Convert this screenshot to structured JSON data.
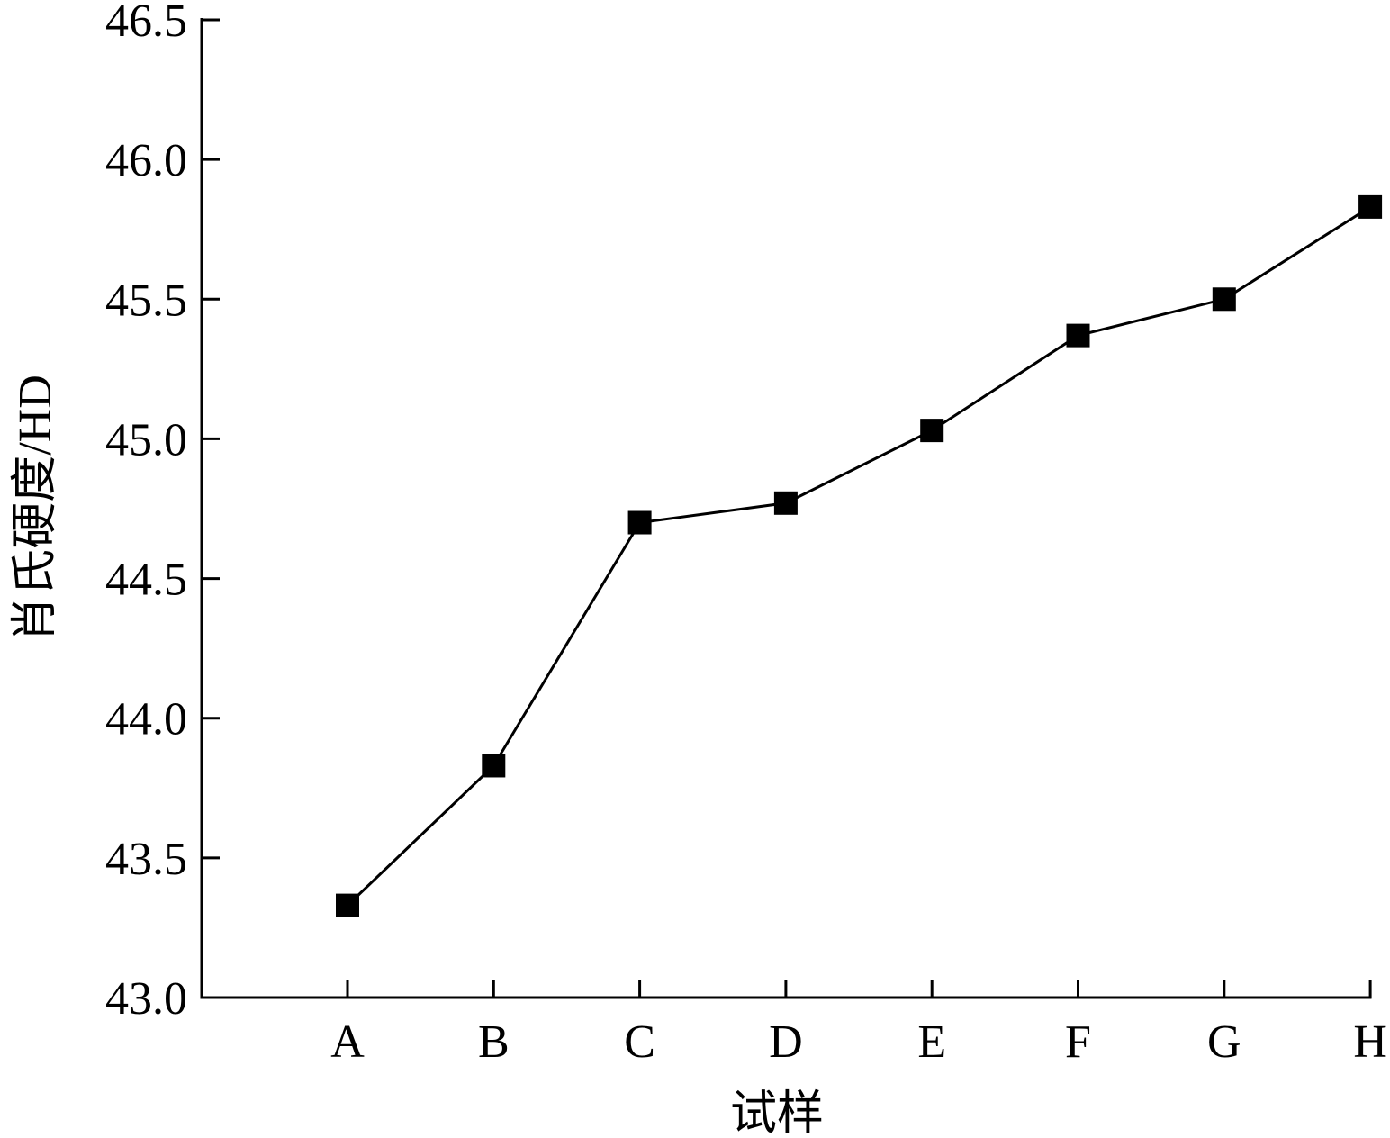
{
  "chart_data": {
    "type": "line",
    "title": "",
    "xlabel": "试样",
    "ylabel": "肖氏硬度/HD",
    "categories": [
      "A",
      "B",
      "C",
      "D",
      "E",
      "F",
      "G",
      "H"
    ],
    "series": [
      {
        "values": [
          43.33,
          43.83,
          44.7,
          44.77,
          45.03,
          45.37,
          45.5,
          45.83
        ],
        "marker": "square"
      }
    ],
    "ylim": [
      43.0,
      46.5
    ],
    "yticks": [
      43.0,
      43.5,
      44.0,
      44.5,
      45.0,
      45.5,
      46.0,
      46.5
    ],
    "ytick_labels": [
      "43.0",
      "43.5",
      "44.0",
      "44.5",
      "45.0",
      "45.5",
      "46.0",
      "46.5"
    ],
    "grid": false,
    "legend": "none",
    "colors": {
      "line": "#000000",
      "marker": "#000000"
    }
  }
}
